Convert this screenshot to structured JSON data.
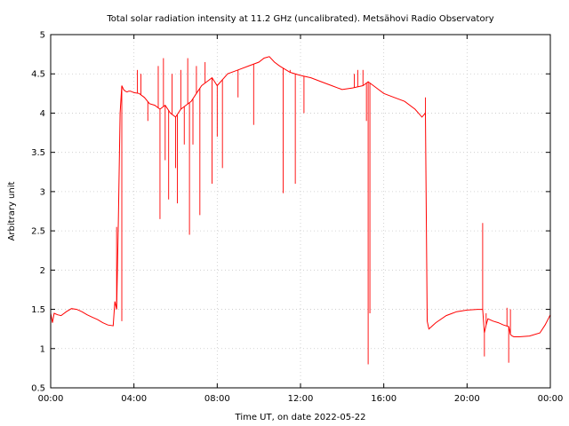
{
  "chart_data": {
    "type": "line",
    "title": "Total solar radiation intensity at 11.2 GHz (uncalibrated). Metsähovi Radio Observatory",
    "xlabel": "Time UT, on date 2022-05-22",
    "ylabel": "Arbitrary unit",
    "xlim": [
      "00:00",
      "24:00"
    ],
    "ylim": [
      0.5,
      5
    ],
    "x_ticks": [
      "00:00",
      "04:00",
      "08:00",
      "12:00",
      "16:00",
      "20:00",
      "00:00"
    ],
    "y_ticks": [
      "0.5",
      "1",
      "1.5",
      "2",
      "2.5",
      "3",
      "3.5",
      "4",
      "4.5",
      "5"
    ],
    "grid": true,
    "line_color": "#ff0000",
    "series": [
      {
        "x": [
          "00:00",
          "00:05",
          "00:10",
          "00:20",
          "00:30",
          "00:45",
          "01:00",
          "01:15",
          "01:30",
          "01:45",
          "02:00",
          "02:15",
          "02:30",
          "02:45",
          "03:00",
          "03:05",
          "03:10",
          "03:15",
          "03:20",
          "03:25",
          "03:30",
          "03:35",
          "03:40",
          "03:45",
          "03:50",
          "04:00",
          "04:15",
          "04:30",
          "04:45",
          "05:00",
          "05:15",
          "05:30",
          "05:45",
          "06:00",
          "06:15",
          "06:30",
          "06:45",
          "07:00",
          "07:15",
          "07:30",
          "07:45",
          "08:00",
          "08:30",
          "09:00",
          "09:30",
          "10:00",
          "10:15",
          "10:30",
          "10:45",
          "11:00",
          "11:30",
          "12:00",
          "12:30",
          "13:00",
          "13:30",
          "14:00",
          "14:30",
          "15:00",
          "15:15",
          "15:30",
          "15:45",
          "16:00",
          "16:30",
          "17:00",
          "17:30",
          "17:50",
          "18:00",
          "18:05",
          "18:10",
          "18:15",
          "18:30",
          "19:00",
          "19:30",
          "20:00",
          "20:30",
          "20:45",
          "20:50",
          "20:55",
          "21:00",
          "21:15",
          "21:30",
          "21:45",
          "22:00",
          "22:05",
          "22:10",
          "22:15",
          "22:30",
          "23:00",
          "23:30",
          "23:45",
          "24:00"
        ],
        "y": [
          1.45,
          1.33,
          1.45,
          1.43,
          1.42,
          1.47,
          1.51,
          1.5,
          1.47,
          1.43,
          1.4,
          1.37,
          1.33,
          1.3,
          1.29,
          1.6,
          1.5,
          2.6,
          4.0,
          4.35,
          4.3,
          4.28,
          4.27,
          4.28,
          4.28,
          4.26,
          4.25,
          4.2,
          4.12,
          4.1,
          4.05,
          4.1,
          4.0,
          3.95,
          4.05,
          4.1,
          4.15,
          4.25,
          4.35,
          4.4,
          4.45,
          4.35,
          4.5,
          4.55,
          4.6,
          4.65,
          4.7,
          4.72,
          4.65,
          4.6,
          4.52,
          4.48,
          4.45,
          4.4,
          4.35,
          4.3,
          4.32,
          4.35,
          4.4,
          4.35,
          4.3,
          4.25,
          4.2,
          4.15,
          4.05,
          3.95,
          4.0,
          1.35,
          1.25,
          1.27,
          1.33,
          1.42,
          1.47,
          1.49,
          1.5,
          1.5,
          1.2,
          1.3,
          1.38,
          1.35,
          1.33,
          1.3,
          1.28,
          1.18,
          1.16,
          1.15,
          1.15,
          1.16,
          1.2,
          1.3,
          1.43
        ]
      }
    ],
    "spikes": [
      {
        "x": "03:10",
        "y": 2.55
      },
      {
        "x": "03:25",
        "y": 1.35
      },
      {
        "x": "04:10",
        "y": 4.55
      },
      {
        "x": "04:20",
        "y": 4.5
      },
      {
        "x": "04:40",
        "y": 3.9
      },
      {
        "x": "05:10",
        "y": 4.6
      },
      {
        "x": "05:15",
        "y": 2.65
      },
      {
        "x": "05:25",
        "y": 4.7
      },
      {
        "x": "05:30",
        "y": 3.4
      },
      {
        "x": "05:40",
        "y": 2.9
      },
      {
        "x": "05:50",
        "y": 4.5
      },
      {
        "x": "06:00",
        "y": 3.3
      },
      {
        "x": "06:05",
        "y": 2.85
      },
      {
        "x": "06:15",
        "y": 4.55
      },
      {
        "x": "06:25",
        "y": 3.6
      },
      {
        "x": "06:35",
        "y": 4.7
      },
      {
        "x": "06:40",
        "y": 2.45
      },
      {
        "x": "06:50",
        "y": 3.6
      },
      {
        "x": "07:00",
        "y": 4.6
      },
      {
        "x": "07:10",
        "y": 2.7
      },
      {
        "x": "07:25",
        "y": 4.65
      },
      {
        "x": "07:45",
        "y": 3.1
      },
      {
        "x": "08:00",
        "y": 3.7
      },
      {
        "x": "08:15",
        "y": 3.3
      },
      {
        "x": "09:00",
        "y": 4.2
      },
      {
        "x": "09:45",
        "y": 3.85
      },
      {
        "x": "11:10",
        "y": 2.98
      },
      {
        "x": "11:30",
        "y": 4.55
      },
      {
        "x": "11:45",
        "y": 3.1
      },
      {
        "x": "12:10",
        "y": 4.0
      },
      {
        "x": "14:35",
        "y": 4.5
      },
      {
        "x": "14:45",
        "y": 4.55
      },
      {
        "x": "15:00",
        "y": 4.55
      },
      {
        "x": "15:10",
        "y": 3.9
      },
      {
        "x": "15:15",
        "y": 0.8
      },
      {
        "x": "15:20",
        "y": 1.45
      },
      {
        "x": "18:00",
        "y": 4.2
      },
      {
        "x": "20:45",
        "y": 2.6
      },
      {
        "x": "20:50",
        "y": 0.9
      },
      {
        "x": "20:55",
        "y": 1.45
      },
      {
        "x": "21:55",
        "y": 1.52
      },
      {
        "x": "22:00",
        "y": 0.82
      },
      {
        "x": "22:05",
        "y": 1.5
      }
    ]
  }
}
